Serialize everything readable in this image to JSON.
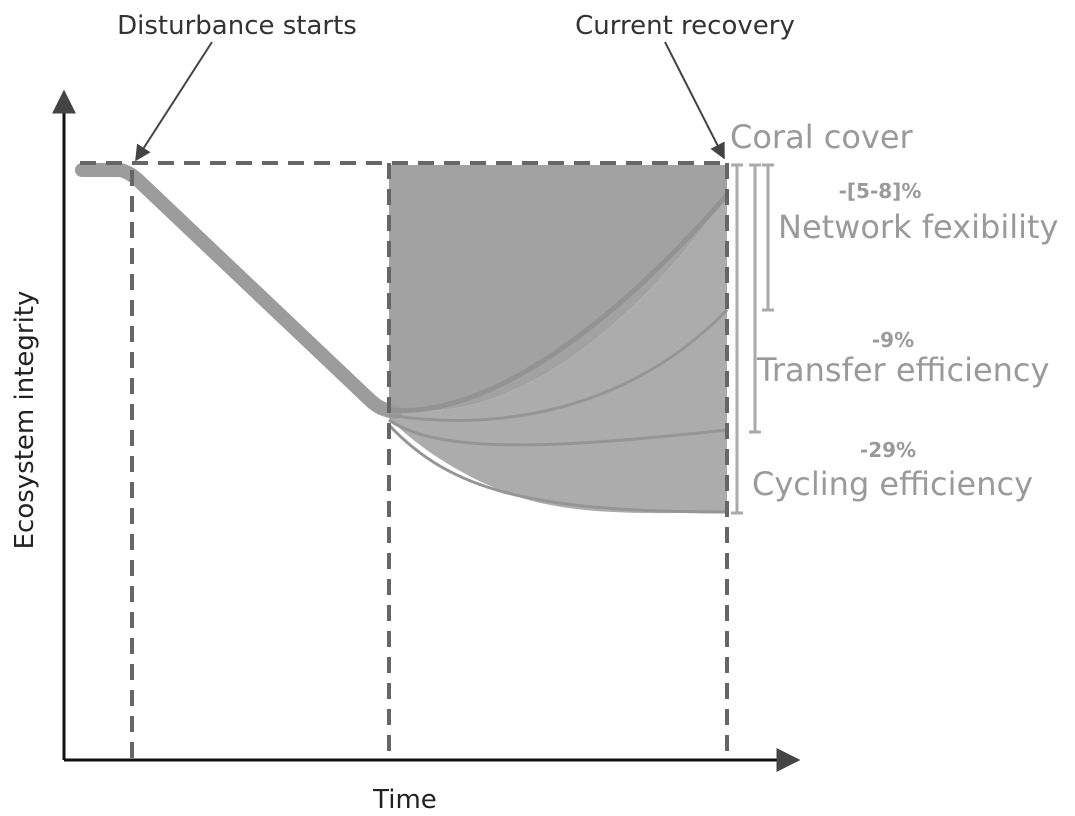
{
  "annotations": {
    "disturbance": "Disturbance starts",
    "recovery": "Current recovery"
  },
  "axes": {
    "y": "Ecosystem integrity",
    "x": "Time"
  },
  "metrics": [
    {
      "name": "Coral cover"
    },
    {
      "change": "-[5-8]%",
      "name": "Network fexibility"
    },
    {
      "change": "-9%",
      "name": "Transfer efficiency"
    },
    {
      "change": "-29%",
      "name": "Cycling efficiency"
    }
  ]
}
